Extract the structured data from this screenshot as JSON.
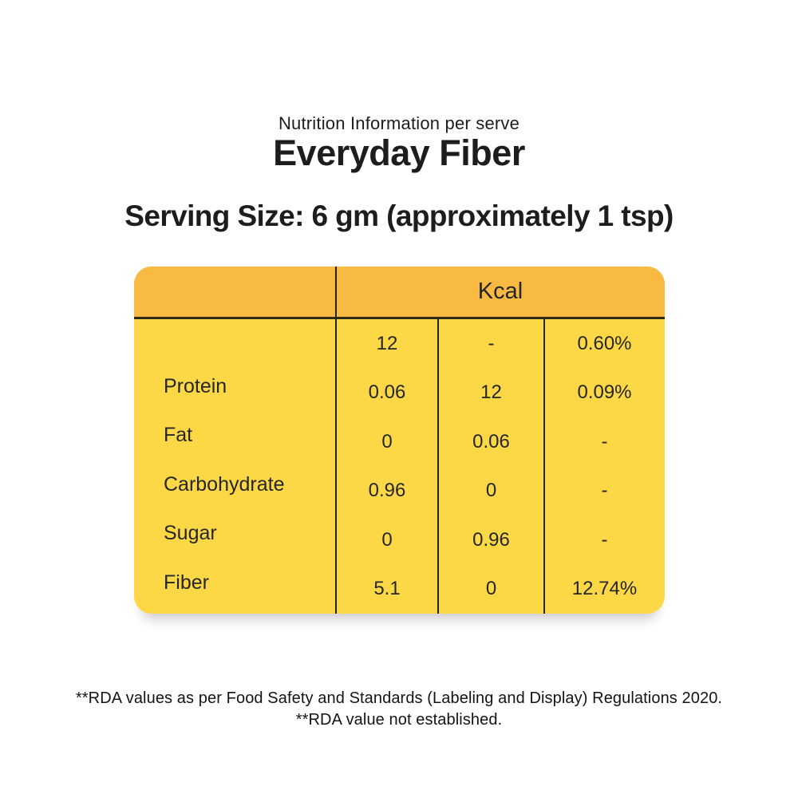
{
  "header": {
    "subtitle": "Nutrition Information per serve",
    "title": "Everyday Fiber",
    "serving_size": "Serving Size: 6 gm (approximately 1 tsp)"
  },
  "table": {
    "kcal_header": "Kcal",
    "rows": [
      {
        "label": "",
        "v1": "12",
        "v2": "-",
        "v3": "0.60%"
      },
      {
        "label": "Protein",
        "v1": "0.06",
        "v2": "12",
        "v3": "0.09%"
      },
      {
        "label": "Fat",
        "v1": "0",
        "v2": "0.06",
        "v3": "-"
      },
      {
        "label": "Carbohydrate",
        "v1": "0.96",
        "v2": "0",
        "v3": "-"
      },
      {
        "label": "Sugar",
        "v1": "0",
        "v2": "0.96",
        "v3": "-"
      },
      {
        "label": "Fiber",
        "v1": "5.1",
        "v2": "0",
        "v3": "12.74%"
      }
    ],
    "colors": {
      "header_bg": "#F9BA44",
      "body_bg": "#FCD846",
      "divider": "#24221A",
      "text": "#262626"
    }
  },
  "footnotes": {
    "line1": "**RDA values as per Food Safety and Standards (Labeling and Display) Regulations 2020.",
    "line2": "**RDA value not established."
  }
}
